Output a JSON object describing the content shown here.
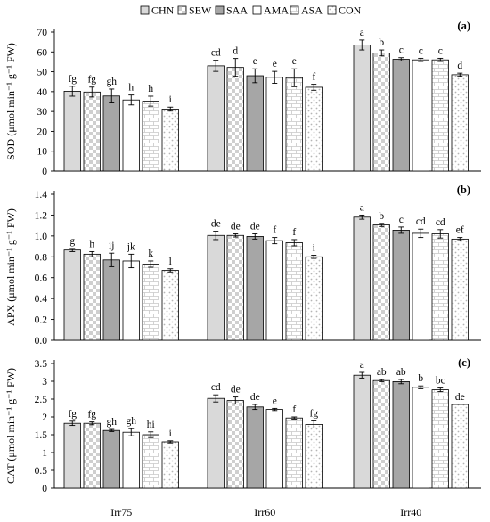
{
  "legend": [
    "CHN",
    "SEW",
    "SAA",
    "AMA",
    "ASA",
    "CON"
  ],
  "chart_data": [
    {
      "type": "bar",
      "panel": "(a)",
      "ylabel": "SOD (μmol min⁻¹ g⁻¹ FW)",
      "ylim": [
        0,
        70
      ],
      "yticks": [
        0,
        10,
        20,
        30,
        40,
        50,
        60,
        70
      ],
      "tick_decimals": 0,
      "categories": [
        "Irr75",
        "Irr60",
        "Irr40"
      ],
      "series": [
        {
          "name": "CHN",
          "values": [
            40.2,
            53.0,
            63.5
          ],
          "errors": [
            2.5,
            2.8,
            2.5
          ],
          "letters": [
            "fg",
            "cd",
            "a"
          ]
        },
        {
          "name": "SEW",
          "values": [
            39.8,
            52.2,
            59.5
          ],
          "errors": [
            2.5,
            4.5,
            1.5
          ],
          "letters": [
            "fg",
            "d",
            "b"
          ]
        },
        {
          "name": "SAA",
          "values": [
            37.8,
            48.0,
            56.3
          ],
          "errors": [
            3.5,
            3.5,
            0.8
          ],
          "letters": [
            "gh",
            "e",
            "c"
          ]
        },
        {
          "name": "AMA",
          "values": [
            35.8,
            47.2,
            56.0
          ],
          "errors": [
            2.5,
            3.0,
            0.8
          ],
          "letters": [
            "h",
            "e",
            "c"
          ]
        },
        {
          "name": "ASA",
          "values": [
            35.2,
            47.0,
            56.0
          ],
          "errors": [
            2.5,
            4.5,
            0.8
          ],
          "letters": [
            "h",
            "e",
            "c"
          ]
        },
        {
          "name": "CON",
          "values": [
            31.2,
            42.2,
            48.5
          ],
          "errors": [
            1.0,
            1.5,
            0.8
          ],
          "letters": [
            "i",
            "f",
            "d"
          ]
        }
      ]
    },
    {
      "type": "bar",
      "panel": "(b)",
      "ylabel": "APX (μmol min⁻¹ g⁻¹ FW)",
      "ylim": [
        0,
        1.4
      ],
      "yticks": [
        0,
        0.2,
        0.4,
        0.6,
        0.8,
        1.0,
        1.2,
        1.4
      ],
      "tick_decimals": 1,
      "categories": [
        "Irr75",
        "Irr60",
        "Irr40"
      ],
      "series": [
        {
          "name": "CHN",
          "values": [
            0.865,
            1.005,
            1.18
          ],
          "errors": [
            0.015,
            0.04,
            0.02
          ],
          "letters": [
            "g",
            "de",
            "a"
          ]
        },
        {
          "name": "SEW",
          "values": [
            0.825,
            1.005,
            1.105
          ],
          "errors": [
            0.025,
            0.015,
            0.015
          ],
          "letters": [
            "h",
            "de",
            "b"
          ]
        },
        {
          "name": "SAA",
          "values": [
            0.77,
            0.995,
            1.055
          ],
          "errors": [
            0.065,
            0.025,
            0.03
          ],
          "letters": [
            "ij",
            "de",
            "c"
          ]
        },
        {
          "name": "AMA",
          "values": [
            0.76,
            0.955,
            1.025
          ],
          "errors": [
            0.065,
            0.03,
            0.04
          ],
          "letters": [
            "jk",
            "f",
            "cd"
          ]
        },
        {
          "name": "ASA",
          "values": [
            0.73,
            0.935,
            1.02
          ],
          "errors": [
            0.03,
            0.03,
            0.04
          ],
          "letters": [
            "k",
            "f",
            "cd"
          ]
        },
        {
          "name": "CON",
          "values": [
            0.67,
            0.8,
            0.97
          ],
          "errors": [
            0.015,
            0.015,
            0.015
          ],
          "letters": [
            "l",
            "i",
            "ef"
          ]
        }
      ]
    },
    {
      "type": "bar",
      "panel": "(c)",
      "ylabel": "CAT (μmol min⁻¹ g⁻¹ FW)",
      "ylim": [
        0,
        3.5
      ],
      "yticks": [
        0,
        0.5,
        1,
        1.5,
        2,
        2.5,
        3,
        3.5
      ],
      "tick_decimals": -1,
      "categories": [
        "Irr75",
        "Irr60",
        "Irr40"
      ],
      "series": [
        {
          "name": "CHN",
          "values": [
            1.82,
            2.52,
            3.17
          ],
          "errors": [
            0.06,
            0.1,
            0.08
          ],
          "letters": [
            "fg",
            "cd",
            "a"
          ]
        },
        {
          "name": "SEW",
          "values": [
            1.82,
            2.46,
            3.02
          ],
          "errors": [
            0.04,
            0.1,
            0.03
          ],
          "letters": [
            "fg",
            "de",
            "ab"
          ]
        },
        {
          "name": "SAA",
          "values": [
            1.62,
            2.28,
            2.99
          ],
          "errors": [
            0.03,
            0.07,
            0.06
          ],
          "letters": [
            "gh",
            "de",
            "ab"
          ]
        },
        {
          "name": "AMA",
          "values": [
            1.57,
            2.21,
            2.83
          ],
          "errors": [
            0.1,
            0.03,
            0.04
          ],
          "letters": [
            "gh",
            "e",
            "b"
          ]
        },
        {
          "name": "ASA",
          "values": [
            1.5,
            1.97,
            2.76
          ],
          "errors": [
            0.08,
            0.03,
            0.05
          ],
          "letters": [
            "hi",
            "f",
            "bc"
          ]
        },
        {
          "name": "CON",
          "values": [
            1.3,
            1.79,
            2.35
          ],
          "errors": [
            0.03,
            0.1,
            0.0
          ],
          "letters": [
            "i",
            "fg",
            "de"
          ]
        }
      ]
    }
  ],
  "colors": {
    "CHN": "#d9d9d9",
    "SEW": "#f2f2f2",
    "SAA": "#a6a6a6",
    "AMA": "#ffffff",
    "ASA": "#ffffff",
    "CON": "#ffffff",
    "stroke": "#000000",
    "pattern": "#bfbfbf"
  }
}
